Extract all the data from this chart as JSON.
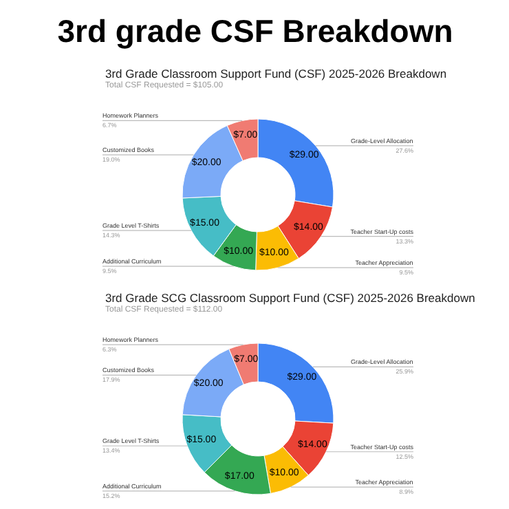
{
  "chart_data": [
    {
      "type": "other",
      "title": "3rd grade CSF Breakdown"
    },
    {
      "type": "donut",
      "title": "3rd Grade Classroom Support Fund (CSF) 2025-2026 Breakdown",
      "subtitle": "Total CSF Requested = $105.00",
      "categories": [
        "Grade-Level Allocation",
        "Teacher Start-Up costs",
        "Teacher Appreciation",
        "Additional Curriculum",
        "Grade Level T-Shirts",
        "Customized Books",
        "Homework Planners"
      ],
      "values": [
        29,
        14,
        10,
        10,
        15,
        20,
        7
      ],
      "colors": [
        "#4285f4",
        "#ea4335",
        "#fbbc04",
        "#34a853",
        "#46bdc6",
        "#7baaf7",
        "#f07b72"
      ],
      "value_labels": [
        "$29.00",
        "$14.00",
        "$10.00",
        "$10.00",
        "$15.00",
        "$20.00",
        "$7.00"
      ],
      "annotations": [
        "27.6%",
        "13.3%",
        "9.5%",
        "9.5%",
        "14.3%",
        "19.0%",
        "6.7%"
      ]
    },
    {
      "type": "donut",
      "title": "3rd Grade SCG Classroom Support Fund (CSF) 2025-2026 Breakdown",
      "subtitle": "Total CSF Requested = $112.00",
      "categories": [
        "Grade-Level Allocation",
        "Teacher Start-Up costs",
        "Teacher Appreciation",
        "Additional Curriculum",
        "Grade Level T-Shirts",
        "Customized Books",
        "Homework Planners"
      ],
      "values": [
        29,
        14,
        10,
        17,
        15,
        20,
        7
      ],
      "colors": [
        "#4285f4",
        "#ea4335",
        "#fbbc04",
        "#34a853",
        "#46bdc6",
        "#7baaf7",
        "#f07b72"
      ],
      "value_labels": [
        "$29.00",
        "$14.00",
        "$10.00",
        "$17.00",
        "$15.00",
        "$20.00",
        "$7.00"
      ],
      "annotations": [
        "25.9%",
        "12.5%",
        "8.9%",
        "15.2%",
        "13.4%",
        "17.9%",
        "6.3%"
      ]
    }
  ]
}
